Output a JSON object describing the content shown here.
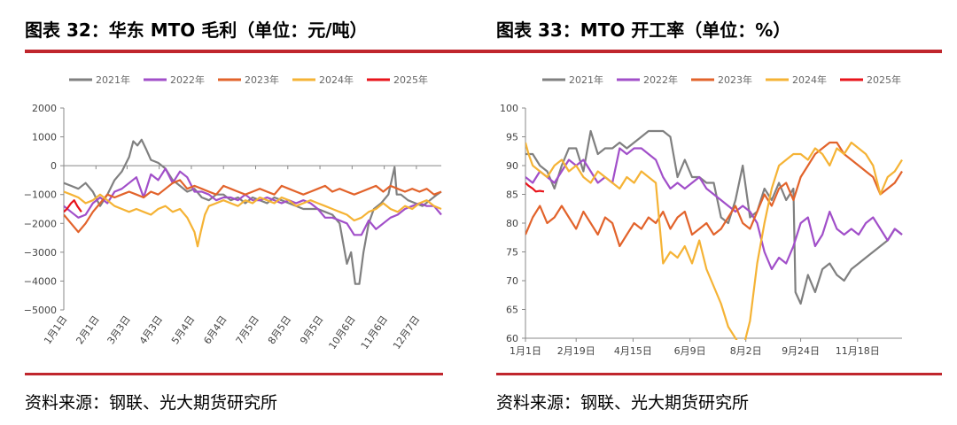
{
  "left": {
    "title": "图表 32：华东 MTO 毛利（单位：元/吨）",
    "source": "资料来源：钢联、光大期货研究所"
  },
  "right": {
    "title": "图表 33：MTO 开工率（单位：%）",
    "source": "资料来源：钢联、光大期货研究所"
  },
  "colors": {
    "2021年": "#808080",
    "2022年": "#a14fc9",
    "2023年": "#e2632b",
    "2024年": "#f5b335",
    "2025年": "#e8141b",
    "rule": "#c0262d"
  },
  "chart_data": [
    {
      "type": "line",
      "title": "华东 MTO 毛利",
      "unit": "元/吨",
      "ylim": [
        -5000,
        2000
      ],
      "yticks": [
        2000,
        1000,
        0,
        -1000,
        -2000,
        -3000,
        -4000,
        -5000
      ],
      "xtick_labels": [
        "1月1日",
        "2月1日",
        "3月3日",
        "4月3日",
        "5月4日",
        "6月4日",
        "7月5日",
        "8月5日",
        "9月5日",
        "10月6日",
        "11月6日",
        "12月7日"
      ],
      "x_domain": [
        1,
        365
      ],
      "xtick_days": [
        1,
        32,
        62,
        93,
        124,
        155,
        186,
        217,
        248,
        279,
        310,
        341
      ],
      "legend_position": "top",
      "series": [
        {
          "name": "2021年",
          "x": [
            1,
            8,
            15,
            22,
            29,
            36,
            43,
            50,
            57,
            64,
            68,
            72,
            76,
            80,
            85,
            92,
            99,
            106,
            113,
            120,
            127,
            134,
            141,
            148,
            155,
            162,
            169,
            176,
            183,
            190,
            197,
            204,
            211,
            218,
            225,
            232,
            239,
            246,
            253,
            260,
            267,
            274,
            278,
            282,
            286,
            290,
            295,
            300,
            307,
            314,
            320,
            322,
            326,
            333,
            340,
            347,
            354,
            361,
            365
          ],
          "y": [
            -600,
            -700,
            -800,
            -600,
            -900,
            -1400,
            -1000,
            -500,
            -200,
            300,
            850,
            700,
            900,
            600,
            200,
            100,
            -100,
            -500,
            -700,
            -900,
            -800,
            -1100,
            -1200,
            -1000,
            -1000,
            -1200,
            -1100,
            -1300,
            -1100,
            -1200,
            -1300,
            -1100,
            -1200,
            -1300,
            -1400,
            -1500,
            -1500,
            -1500,
            -1600,
            -1700,
            -2000,
            -3400,
            -3000,
            -4100,
            -4100,
            -3000,
            -2000,
            -1500,
            -1300,
            -1000,
            -50,
            -1000,
            -1000,
            -1200,
            -1300,
            -1400,
            -1200,
            -1000,
            -900
          ]
        },
        {
          "name": "2022年",
          "x": [
            1,
            8,
            15,
            22,
            29,
            36,
            43,
            50,
            57,
            64,
            71,
            78,
            85,
            92,
            99,
            106,
            113,
            120,
            127,
            134,
            141,
            148,
            155,
            162,
            169,
            176,
            183,
            190,
            197,
            204,
            211,
            218,
            225,
            232,
            239,
            246,
            253,
            260,
            267,
            274,
            281,
            288,
            295,
            302,
            309,
            316,
            323,
            330,
            337,
            344,
            351,
            358,
            365
          ],
          "y": [
            -1400,
            -1600,
            -1800,
            -1700,
            -1300,
            -1100,
            -1300,
            -900,
            -800,
            -600,
            -400,
            -1100,
            -300,
            -500,
            -100,
            -600,
            -200,
            -400,
            -900,
            -900,
            -1000,
            -1200,
            -1100,
            -1100,
            -1200,
            -1000,
            -1200,
            -1200,
            -1100,
            -1200,
            -1300,
            -1200,
            -1300,
            -1200,
            -1300,
            -1500,
            -1800,
            -1800,
            -1900,
            -2000,
            -2400,
            -2400,
            -1900,
            -2200,
            -2000,
            -1800,
            -1700,
            -1500,
            -1400,
            -1300,
            -1400,
            -1400,
            -1700
          ]
        },
        {
          "name": "2023年",
          "x": [
            1,
            8,
            15,
            22,
            29,
            36,
            43,
            50,
            57,
            64,
            71,
            78,
            85,
            92,
            99,
            106,
            113,
            120,
            127,
            134,
            141,
            148,
            155,
            162,
            169,
            176,
            183,
            190,
            197,
            204,
            211,
            218,
            225,
            232,
            239,
            246,
            253,
            260,
            267,
            274,
            281,
            288,
            295,
            302,
            309,
            316,
            323,
            330,
            337,
            344,
            351,
            358,
            365
          ],
          "y": [
            -1700,
            -2000,
            -2300,
            -2000,
            -1600,
            -1300,
            -1000,
            -1100,
            -1000,
            -900,
            -1000,
            -1100,
            -900,
            -1000,
            -800,
            -600,
            -500,
            -800,
            -700,
            -800,
            -900,
            -1000,
            -700,
            -800,
            -900,
            -1000,
            -900,
            -800,
            -900,
            -1000,
            -700,
            -800,
            -900,
            -1000,
            -900,
            -800,
            -700,
            -900,
            -800,
            -900,
            -1000,
            -900,
            -800,
            -700,
            -900,
            -700,
            -800,
            -900,
            -800,
            -900,
            -800,
            -1000,
            -900
          ]
        },
        {
          "name": "2024年",
          "x": [
            1,
            8,
            15,
            22,
            29,
            36,
            43,
            50,
            57,
            64,
            71,
            78,
            85,
            92,
            99,
            106,
            113,
            120,
            127,
            130,
            133,
            137,
            141,
            148,
            155,
            162,
            169,
            176,
            183,
            190,
            197,
            204,
            211,
            218,
            225,
            232,
            239,
            246,
            253,
            260,
            267,
            274,
            281,
            288,
            295,
            302,
            309,
            316,
            323,
            330,
            337,
            344,
            351,
            358,
            365
          ],
          "y": [
            -900,
            -1000,
            -1100,
            -1300,
            -1200,
            -1000,
            -1200,
            -1400,
            -1500,
            -1600,
            -1500,
            -1600,
            -1700,
            -1500,
            -1400,
            -1600,
            -1500,
            -1800,
            -2300,
            -2800,
            -2300,
            -1700,
            -1400,
            -1300,
            -1200,
            -1300,
            -1400,
            -1200,
            -1300,
            -1100,
            -1200,
            -1300,
            -1100,
            -1200,
            -1400,
            -1300,
            -1200,
            -1300,
            -1400,
            -1500,
            -1600,
            -1700,
            -1900,
            -1800,
            -1600,
            -1500,
            -1300,
            -1500,
            -1600,
            -1400,
            -1500,
            -1300,
            -1200,
            -1400,
            -1500
          ]
        },
        {
          "name": "2025年",
          "x": [
            1,
            4,
            8,
            11,
            14,
            18
          ],
          "y": [
            -1600,
            -1500,
            -1300,
            -1200,
            -1400,
            -1600
          ]
        }
      ]
    },
    {
      "type": "line",
      "title": "MTO 开工率",
      "unit": "%",
      "ylim": [
        60,
        100
      ],
      "yticks": [
        100,
        95,
        90,
        85,
        80,
        75,
        70,
        65,
        60
      ],
      "xtick_labels": [
        "1月1日",
        "2月19日",
        "4月15日",
        "6月9日",
        "8月2日",
        "9月24日",
        "11月18日"
      ],
      "x_domain": [
        1,
        365
      ],
      "xtick_days": [
        1,
        50,
        105,
        160,
        214,
        267,
        322
      ],
      "legend_position": "top",
      "series": [
        {
          "name": "2021年",
          "x": [
            1,
            8,
            15,
            22,
            29,
            36,
            43,
            50,
            57,
            64,
            71,
            78,
            85,
            92,
            99,
            106,
            113,
            120,
            127,
            134,
            141,
            148,
            155,
            162,
            169,
            176,
            183,
            190,
            197,
            204,
            211,
            218,
            225,
            232,
            239,
            246,
            253,
            260,
            262,
            267,
            274,
            281,
            288,
            295,
            302,
            309,
            316,
            323,
            330,
            337,
            344,
            351,
            358,
            365
          ],
          "y": [
            92,
            92,
            90,
            89,
            86,
            90,
            93,
            93,
            89,
            96,
            92,
            93,
            93,
            94,
            93,
            94,
            95,
            96,
            96,
            96,
            95,
            88,
            91,
            88,
            88,
            87,
            87,
            81,
            80,
            84,
            90,
            81,
            82,
            86,
            84,
            87,
            84,
            86,
            68,
            66,
            71,
            68,
            72,
            73,
            71,
            70,
            72,
            73,
            74,
            75,
            76,
            77,
            79,
            78
          ]
        },
        {
          "name": "2022年",
          "x": [
            1,
            8,
            15,
            22,
            29,
            36,
            43,
            50,
            57,
            64,
            71,
            78,
            85,
            92,
            99,
            106,
            113,
            120,
            127,
            134,
            141,
            148,
            155,
            162,
            169,
            176,
            183,
            190,
            197,
            204,
            211,
            218,
            225,
            232,
            239,
            246,
            253,
            260,
            267,
            274,
            281,
            288,
            295,
            302,
            309,
            316,
            323,
            330,
            337,
            344,
            351,
            358,
            365
          ],
          "y": [
            88,
            87,
            89,
            88,
            87,
            89,
            91,
            90,
            91,
            89,
            87,
            88,
            87,
            93,
            92,
            93,
            93,
            92,
            91,
            88,
            86,
            87,
            86,
            87,
            88,
            86,
            85,
            84,
            83,
            82,
            83,
            82,
            80,
            75,
            72,
            74,
            73,
            76,
            80,
            81,
            76,
            78,
            82,
            79,
            78,
            79,
            78,
            80,
            81,
            79,
            77,
            79,
            78
          ]
        },
        {
          "name": "2023年",
          "x": [
            1,
            8,
            15,
            22,
            29,
            36,
            43,
            50,
            57,
            64,
            71,
            78,
            85,
            92,
            99,
            106,
            113,
            120,
            127,
            134,
            141,
            148,
            155,
            162,
            169,
            176,
            183,
            190,
            197,
            204,
            211,
            218,
            225,
            232,
            239,
            246,
            253,
            260,
            267,
            274,
            281,
            288,
            295,
            302,
            309,
            316,
            323,
            330,
            337,
            344,
            351,
            358,
            365
          ],
          "y": [
            78,
            81,
            83,
            80,
            81,
            83,
            81,
            79,
            82,
            80,
            78,
            81,
            80,
            76,
            78,
            80,
            79,
            81,
            80,
            82,
            79,
            81,
            82,
            78,
            79,
            80,
            78,
            79,
            81,
            83,
            80,
            79,
            82,
            85,
            83,
            86,
            87,
            84,
            88,
            90,
            92,
            93,
            94,
            94,
            92,
            91,
            90,
            89,
            88,
            85,
            86,
            87,
            89
          ]
        },
        {
          "name": "2024年",
          "x": [
            1,
            4,
            8,
            15,
            22,
            29,
            36,
            43,
            50,
            57,
            64,
            71,
            78,
            85,
            92,
            99,
            106,
            113,
            120,
            127,
            134,
            141,
            148,
            155,
            162,
            169,
            176,
            183,
            190,
            197,
            204,
            211,
            218,
            225,
            232,
            239,
            246,
            253,
            260,
            267,
            274,
            281,
            288,
            295,
            302,
            309,
            316,
            323,
            330,
            337,
            344,
            351,
            358,
            365
          ],
          "y": [
            94,
            92,
            90,
            89,
            88,
            90,
            91,
            89,
            90,
            88,
            87,
            89,
            88,
            87,
            86,
            88,
            87,
            89,
            88,
            87,
            73,
            75,
            74,
            76,
            73,
            77,
            72,
            69,
            66,
            62,
            60,
            58,
            63,
            73,
            80,
            86,
            90,
            91,
            92,
            92,
            91,
            93,
            92,
            90,
            93,
            92,
            94,
            93,
            92,
            90,
            85,
            88,
            89,
            91
          ]
        },
        {
          "name": "2025年",
          "x": [
            1,
            4,
            8,
            11,
            15,
            19
          ],
          "y": [
            87,
            86.5,
            86,
            85.5,
            85.6,
            85.5
          ]
        }
      ]
    }
  ]
}
